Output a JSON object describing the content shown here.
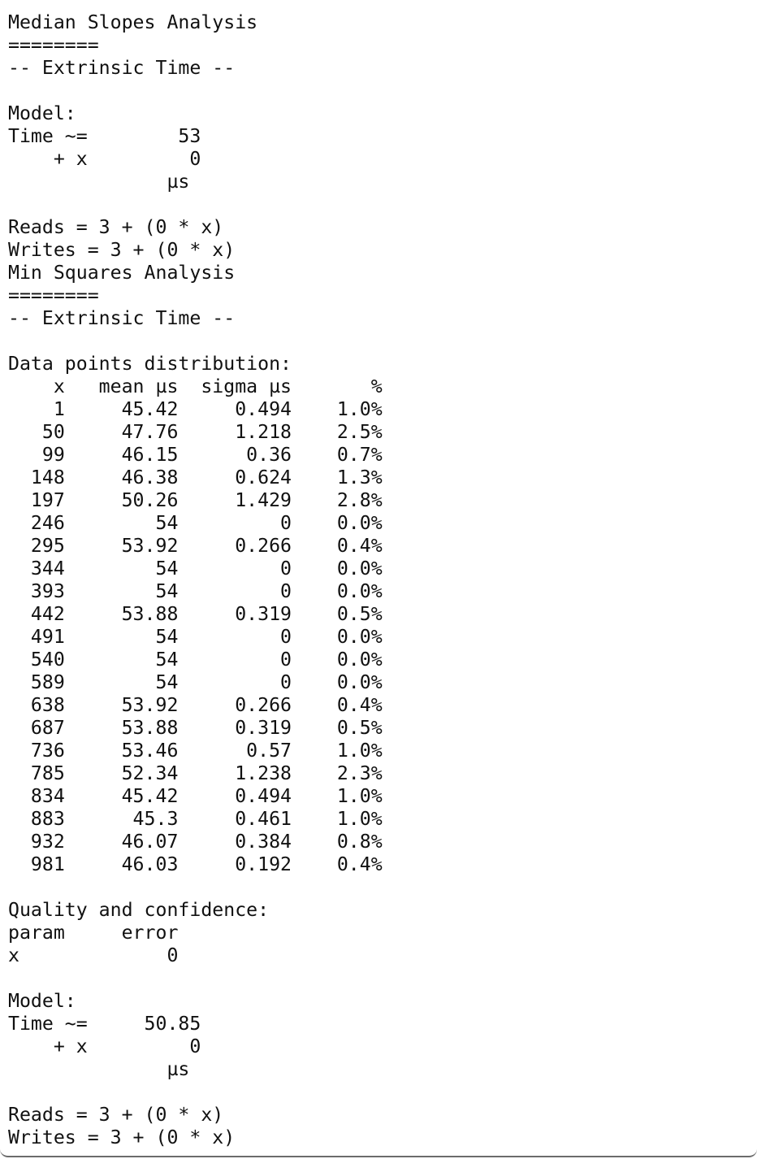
{
  "lines": [
    "Median Slopes Analysis",
    "========",
    "-- Extrinsic Time --",
    "",
    "Model:",
    "Time ~=        53",
    "    + x         0",
    "              µs",
    "",
    "Reads = 3 + (0 * x)",
    "Writes = 3 + (0 * x)",
    "Min Squares Analysis",
    "========",
    "-- Extrinsic Time --",
    "",
    "Data points distribution:",
    "    x   mean µs  sigma µs       %",
    "    1     45.42     0.494    1.0%",
    "   50     47.76     1.218    2.5%",
    "   99     46.15      0.36    0.7%",
    "  148     46.38     0.624    1.3%",
    "  197     50.26     1.429    2.8%",
    "  246        54         0    0.0%",
    "  295     53.92     0.266    0.4%",
    "  344        54         0    0.0%",
    "  393        54         0    0.0%",
    "  442     53.88     0.319    0.5%",
    "  491        54         0    0.0%",
    "  540        54         0    0.0%",
    "  589        54         0    0.0%",
    "  638     53.92     0.266    0.4%",
    "  687     53.88     0.319    0.5%",
    "  736     53.46      0.57    1.0%",
    "  785     52.34     1.238    2.3%",
    "  834     45.42     0.494    1.0%",
    "  883      45.3     0.461    1.0%",
    "  932     46.07     0.384    0.8%",
    "  981     46.03     0.192    0.4%",
    "",
    "Quality and confidence:",
    "param     error",
    "x             0",
    "",
    "Model:",
    "Time ~=     50.85",
    "    + x         0",
    "              µs",
    "",
    "Reads = 3 + (0 * x)",
    "Writes = 3 + (0 * x)"
  ]
}
